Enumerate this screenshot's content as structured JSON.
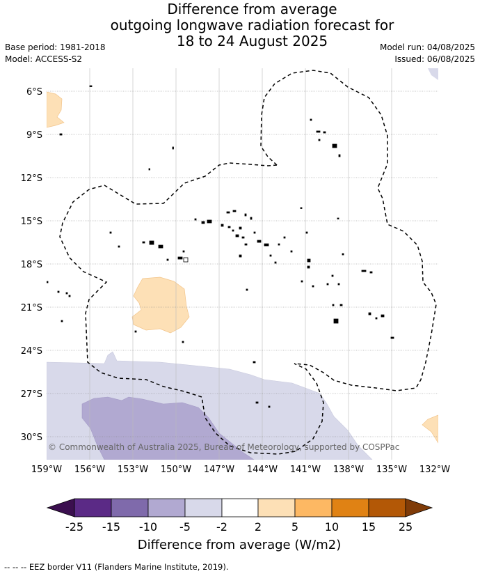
{
  "header": {
    "title_lines": [
      "Difference from average",
      "outgoing longwave radiation forecast for",
      "18 to 24 August 2025"
    ],
    "base_period": "Base period: 1981-2018",
    "model": "Model: ACCESS-S2",
    "model_run": "Model run: 04/08/2025",
    "issued": "Issued: 06/08/2025"
  },
  "map": {
    "lat_labels": [
      "6°S",
      "9°S",
      "12°S",
      "15°S",
      "18°S",
      "21°S",
      "24°S",
      "27°S",
      "30°S"
    ],
    "lon_labels": [
      "159°W",
      "156°W",
      "153°W",
      "150°W",
      "147°W",
      "144°W",
      "141°W",
      "138°W",
      "135°W",
      "132°W"
    ],
    "copyright": "© Commonwealth of Australia 2025, Bureau of Meteorology, supported by COSPPac",
    "colors": {
      "neg_25": "#3b0f4f",
      "neg_15": "#5b2a86",
      "neg_10": "#7f6aab",
      "neg_5": "#b1a9d1",
      "neg_2": "#d8d9ea",
      "zero": "#ffffff",
      "pos_2": "#fde0b6",
      "pos_5": "#fdb863",
      "pos_10": "#e08214",
      "pos_15": "#b35806",
      "pos_25": "#7f3b08"
    }
  },
  "colorbar": {
    "ticks": [
      "-25",
      "-15",
      "-10",
      "-5",
      "-2",
      "2",
      "5",
      "10",
      "15",
      "25"
    ],
    "title": "Difference from average (W/m2)"
  },
  "footer": {
    "legend": "--  --  -- EEZ border V11 (Flanders Marine Institute, 2019)."
  }
}
